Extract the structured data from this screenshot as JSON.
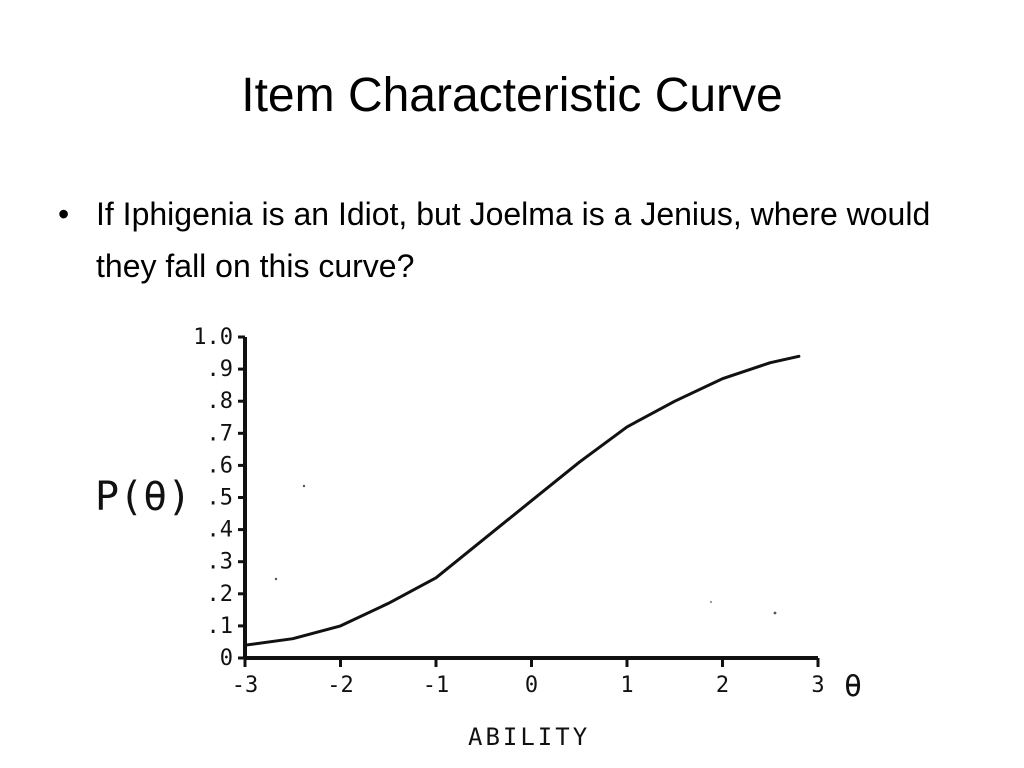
{
  "slide": {
    "title": "Item Characteristic Curve",
    "bullets": [
      {
        "marker": "•",
        "text": "If Iphigenia is an Idiot, but Joelma is a Jenius, where would they fall on this curve?"
      }
    ]
  },
  "chart_data": {
    "type": "line",
    "title": "",
    "xlabel": "ABILITY",
    "ylabel": "P(θ)",
    "x_axis_symbol": "θ",
    "xlim": [
      -3,
      3
    ],
    "ylim": [
      0,
      1.0
    ],
    "x_ticks": [
      -3,
      -2,
      -1,
      0,
      1,
      2,
      3
    ],
    "x_tick_labels": [
      "-3",
      "-2",
      "-1",
      "0",
      "1",
      "2",
      "3"
    ],
    "y_ticks": [
      0,
      0.1,
      0.2,
      0.3,
      0.4,
      0.5,
      0.6,
      0.7,
      0.8,
      0.9,
      1.0
    ],
    "y_tick_labels": [
      "0",
      ".1",
      ".2",
      ".3",
      ".4",
      ".5",
      ".6",
      ".7",
      ".8",
      ".9",
      "1.0"
    ],
    "grid": false,
    "colors": {
      "axis": "#111111",
      "curve": "#111111"
    },
    "series": [
      {
        "x": [
          -3.0,
          -2.5,
          -2.0,
          -1.5,
          -1.0,
          -0.5,
          0.0,
          0.5,
          1.0,
          1.5,
          2.0,
          2.5,
          2.8
        ],
        "y": [
          0.04,
          0.06,
          0.1,
          0.17,
          0.25,
          0.37,
          0.49,
          0.61,
          0.72,
          0.8,
          0.87,
          0.92,
          0.94
        ]
      }
    ]
  }
}
